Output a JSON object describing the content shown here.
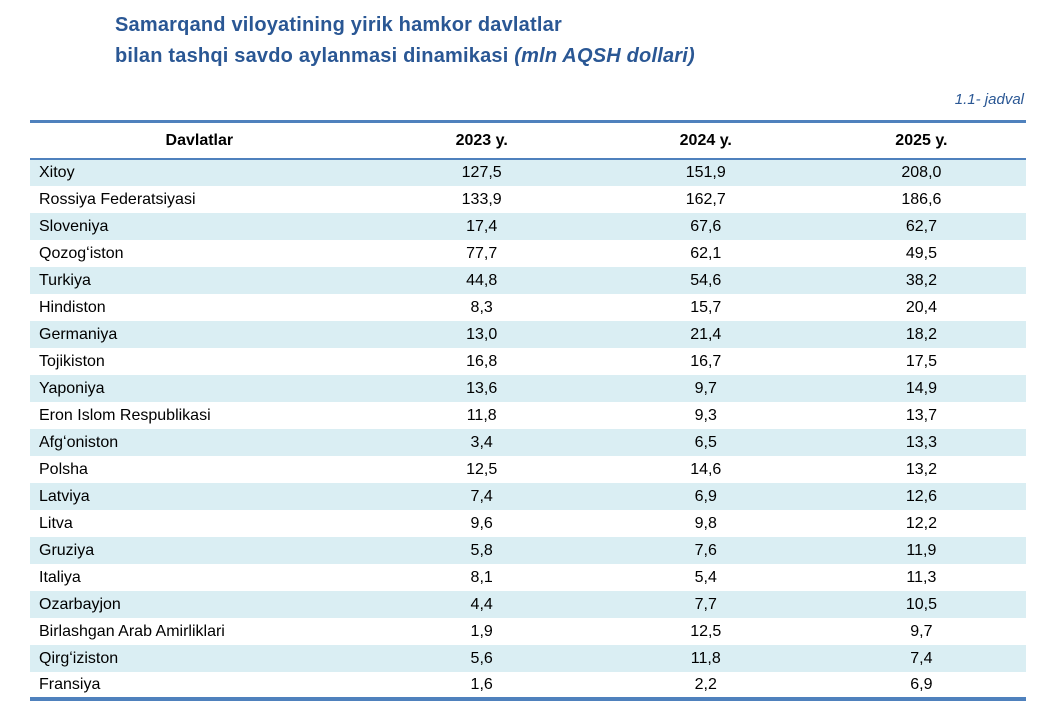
{
  "title": {
    "line1": "Samarqand viloyatining yirik hamkor davlatlar",
    "line2": "bilan tashqi savdo aylanmasi dinamikasi ",
    "line2_italic": "(mln AQSH dollari)"
  },
  "table_label": "1.1- jadval",
  "colors": {
    "accent_blue": "#4f81bd",
    "row_alt_blue": "#daeef3",
    "title_blue": "#2a5794"
  },
  "table": {
    "headers": [
      "Davlatlar",
      "2023 y.",
      "2024 y.",
      "2025 y."
    ],
    "rows": [
      [
        "Xitoy",
        "127,5",
        "151,9",
        "208,0"
      ],
      [
        "Rossiya Federatsiyasi",
        "133,9",
        "162,7",
        "186,6"
      ],
      [
        "Sloveniya",
        "17,4",
        "67,6",
        "62,7"
      ],
      [
        "Qozogʻiston",
        "77,7",
        "62,1",
        "49,5"
      ],
      [
        "Turkiya",
        "44,8",
        "54,6",
        "38,2"
      ],
      [
        "Hindiston",
        "8,3",
        "15,7",
        "20,4"
      ],
      [
        "Germaniya",
        "13,0",
        "21,4",
        "18,2"
      ],
      [
        "Tojikiston",
        "16,8",
        "16,7",
        "17,5"
      ],
      [
        "Yaponiya",
        "13,6",
        "9,7",
        "14,9"
      ],
      [
        "Eron Islom Respublikasi",
        "11,8",
        "9,3",
        "13,7"
      ],
      [
        "Afgʻoniston",
        "3,4",
        "6,5",
        "13,3"
      ],
      [
        "Polsha",
        "12,5",
        "14,6",
        "13,2"
      ],
      [
        "Latviya",
        "7,4",
        "6,9",
        "12,6"
      ],
      [
        "Litva",
        "9,6",
        "9,8",
        "12,2"
      ],
      [
        "Gruziya",
        "5,8",
        "7,6",
        "11,9"
      ],
      [
        "Italiya",
        "8,1",
        "5,4",
        "11,3"
      ],
      [
        "Ozarbayjon",
        "4,4",
        "7,7",
        "10,5"
      ],
      [
        "Birlashgan Arab Amirliklari",
        "1,9",
        "12,5",
        "9,7"
      ],
      [
        "Qirgʻiziston",
        "5,6",
        "11,8",
        "7,4"
      ],
      [
        "Fransiya",
        "1,6",
        "2,2",
        "6,9"
      ]
    ]
  }
}
